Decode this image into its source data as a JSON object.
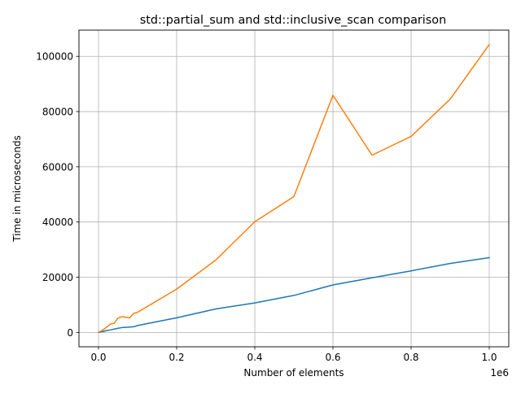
{
  "chart_data": {
    "type": "line",
    "title": "std::partial_sum and std::inclusive_scan comparison",
    "xlabel": "Number of elements",
    "ylabel": "Time in microseconds",
    "x_offset_label": "1e6",
    "xlim": [
      -50000,
      1050000
    ],
    "ylim": [
      -5200,
      109500
    ],
    "x_ticks": [
      0,
      200000,
      400000,
      600000,
      800000,
      1000000
    ],
    "x_tick_labels": [
      "0.0",
      "0.2",
      "0.4",
      "0.6",
      "0.8",
      "1.0"
    ],
    "y_ticks": [
      0,
      20000,
      40000,
      60000,
      80000,
      100000
    ],
    "y_tick_labels": [
      "0",
      "20000",
      "40000",
      "60000",
      "80000",
      "100000"
    ],
    "grid": true,
    "legend": false,
    "series": [
      {
        "color": "#1f77b4",
        "x": [
          0,
          10000,
          20000,
          30000,
          40000,
          50000,
          60000,
          70000,
          80000,
          90000,
          100000,
          200000,
          300000,
          400000,
          500000,
          600000,
          700000,
          800000,
          900000,
          1000000
        ],
        "y": [
          0,
          300,
          650,
          900,
          1200,
          1500,
          1750,
          1850,
          1950,
          2050,
          2500,
          5300,
          8500,
          10700,
          13400,
          17200,
          19800,
          22300,
          25000,
          27100
        ]
      },
      {
        "color": "#ff7f0e",
        "x": [
          0,
          10000,
          20000,
          30000,
          40000,
          50000,
          60000,
          70000,
          80000,
          90000,
          100000,
          200000,
          300000,
          400000,
          500000,
          600000,
          700000,
          800000,
          900000,
          1000000
        ],
        "y": [
          0,
          800,
          1800,
          3000,
          3300,
          5200,
          5700,
          5500,
          5300,
          6900,
          7300,
          15700,
          26200,
          40100,
          49200,
          85900,
          64200,
          71000,
          84500,
          104300
        ]
      }
    ]
  }
}
